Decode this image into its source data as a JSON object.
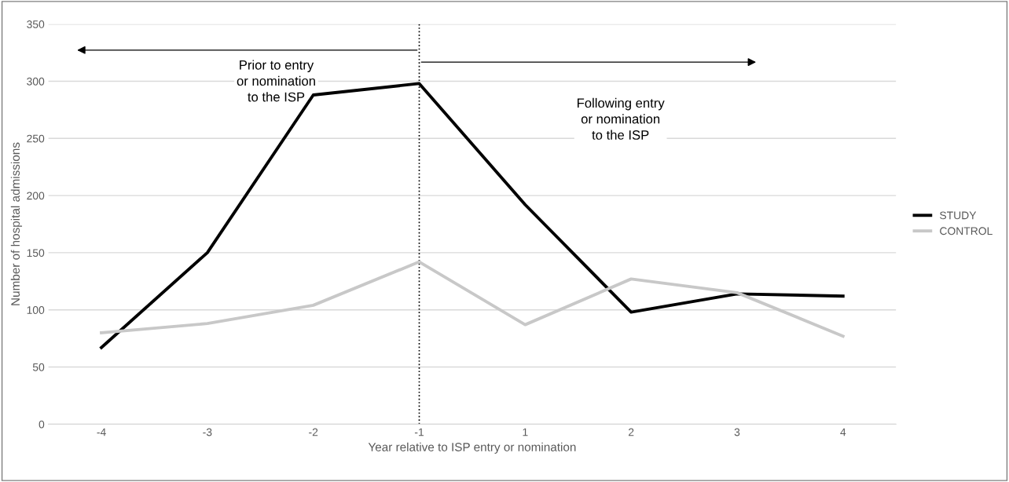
{
  "chart_data": {
    "type": "line",
    "xlabel": "Year relative to ISP entry or nomination",
    "ylabel": "Number of hospital admissions",
    "categories": [
      "-4",
      "-3",
      "-2",
      "-1",
      "1",
      "2",
      "3",
      "4"
    ],
    "series": [
      {
        "name": "STUDY",
        "color": "#000000",
        "values": [
          67,
          150,
          288,
          298,
          192,
          98,
          114,
          112
        ]
      },
      {
        "name": "CONTROL",
        "color": "#c8c8c8",
        "values": [
          80,
          88,
          104,
          142,
          87,
          127,
          115,
          77
        ]
      }
    ],
    "ylim": [
      0,
      350
    ],
    "yticks": [
      0,
      50,
      100,
      150,
      200,
      250,
      300,
      350
    ],
    "grid": "y",
    "legend": "right",
    "marker": "none",
    "line_style": "solid",
    "ref_lines": [
      {
        "axis": "x",
        "value": "-1",
        "label": null,
        "color": "#000000",
        "line_style": "dotted"
      }
    ],
    "annotations": [
      "Prior to entry\nor nomination\nto the ISP",
      "Following entry\nor nomination\nto the ISP"
    ]
  }
}
